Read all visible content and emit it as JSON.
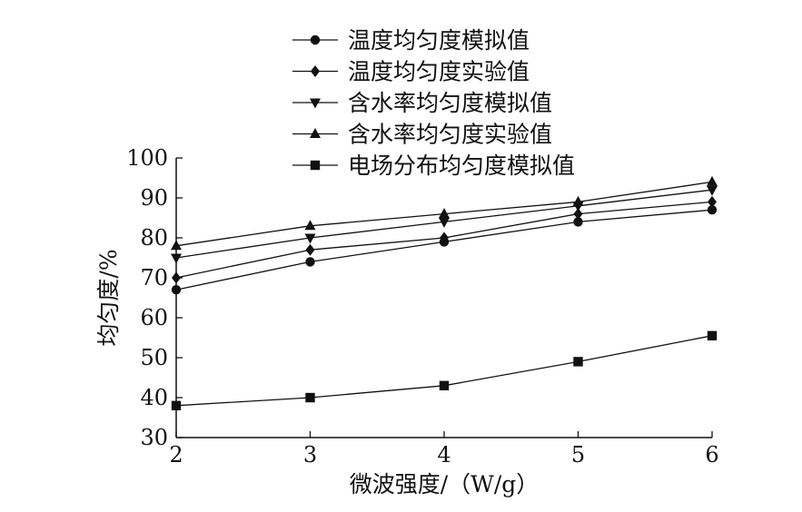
{
  "chart_data": {
    "type": "line",
    "xlabel": "微波强度/（W/g）",
    "ylabel": "均匀度/%",
    "xlim": [
      2,
      6
    ],
    "ylim": [
      30,
      100
    ],
    "x_ticks": [
      "2",
      "3",
      "4",
      "5",
      "6"
    ],
    "y_ticks": [
      "30",
      "40",
      "50",
      "60",
      "70",
      "80",
      "90",
      "100"
    ],
    "grid": false,
    "legend_position": "top-center",
    "x": [
      2,
      3,
      4,
      5,
      6
    ],
    "series": [
      {
        "name": "温度均匀度模拟值",
        "marker": "circle",
        "values": [
          67,
          74,
          79,
          84,
          87
        ]
      },
      {
        "name": "温度均匀度实验值",
        "marker": "diamond",
        "values": [
          70,
          77,
          80,
          86,
          89
        ]
      },
      {
        "name": "含水率均匀度模拟值",
        "marker": "triangle-down",
        "values": [
          75,
          80,
          84,
          88,
          92
        ]
      },
      {
        "name": "含水率均匀度实验值",
        "marker": "triangle-up",
        "values": [
          78,
          83,
          86,
          89,
          94
        ]
      },
      {
        "name": "电场分布均匀度模拟值",
        "marker": "square",
        "values": [
          38,
          40,
          43,
          49,
          55.5
        ]
      }
    ]
  }
}
